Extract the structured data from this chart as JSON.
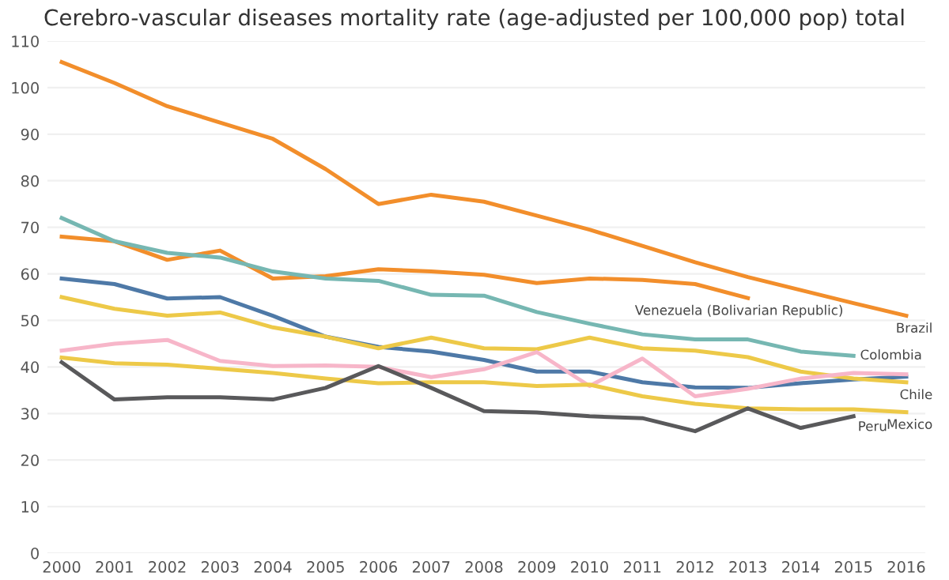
{
  "chart_data": {
    "type": "line",
    "title": "Cerebro-vascular diseases mortality rate (age-adjusted per 100,000 pop) total",
    "categories": [
      "2000",
      "2001",
      "2002",
      "2003",
      "2004",
      "2005",
      "2006",
      "2007",
      "2008",
      "2009",
      "2010",
      "2011",
      "2012",
      "2013",
      "2014",
      "2015",
      "2016"
    ],
    "ylim": [
      0,
      110
    ],
    "yticks": [
      0,
      10,
      20,
      30,
      40,
      50,
      60,
      70,
      80,
      90,
      100,
      110
    ],
    "grid": "y",
    "legend": false,
    "marker": "none",
    "line_style": "solid",
    "series": [
      {
        "name": "Brazil",
        "color": "#f28e2b",
        "values": [
          105.5,
          101,
          96,
          92.5,
          89,
          82.5,
          75,
          77,
          75.5,
          72.5,
          69.5,
          66,
          62.5,
          59.3,
          56.5,
          53.7,
          51
        ]
      },
      {
        "name": "Venezuela (Bolivarian Republic)",
        "color": "#f28e2b",
        "values": [
          68,
          67,
          63,
          65,
          59,
          59.5,
          61,
          60.5,
          59.8,
          58,
          59,
          58.7,
          57.8,
          54.8,
          null,
          null,
          null
        ]
      },
      {
        "name": "Colombia",
        "color": "#76b7b2",
        "values": [
          72,
          67,
          64.5,
          63.5,
          60.5,
          59,
          58.5,
          55.5,
          55.3,
          51.8,
          49.3,
          47,
          45.9,
          45.9,
          43.3,
          42.4,
          null
        ]
      },
      {
        "color": "#4e79a7",
        "values": [
          59,
          57.8,
          54.7,
          55,
          51,
          46.5,
          44.3,
          43.3,
          41.5,
          39,
          39,
          36.7,
          35.6,
          35.5,
          36.5,
          37.3,
          37.9
        ]
      },
      {
        "name": "Chile",
        "color": "#edc948",
        "values": [
          55,
          52.5,
          51,
          51.7,
          48.5,
          46.5,
          44,
          46.3,
          44,
          43.8,
          46.3,
          44,
          43.5,
          42.1,
          39,
          37.5,
          36.7
        ]
      },
      {
        "color": "#f7b6c9",
        "values": [
          43.5,
          45,
          45.8,
          41.3,
          40.2,
          40.3,
          40,
          37.8,
          39.5,
          43.2,
          35.9,
          41.8,
          33.7,
          35.3,
          37.5,
          38.7,
          38.4
        ]
      },
      {
        "name": "Mexico",
        "color": "#edc948",
        "values": [
          42,
          40.8,
          40.5,
          39.6,
          38.7,
          37.5,
          36.5,
          36.7,
          36.7,
          35.9,
          36.2,
          33.7,
          32.1,
          31.1,
          30.9,
          30.9,
          30.3
        ]
      },
      {
        "name": "Peru",
        "color": "#59595b",
        "values": [
          41,
          33,
          33.5,
          33.5,
          33,
          35.5,
          40.2,
          35.5,
          30.5,
          30.2,
          29.4,
          29,
          26.2,
          31.1,
          26.9,
          29.4,
          null
        ]
      }
    ]
  }
}
